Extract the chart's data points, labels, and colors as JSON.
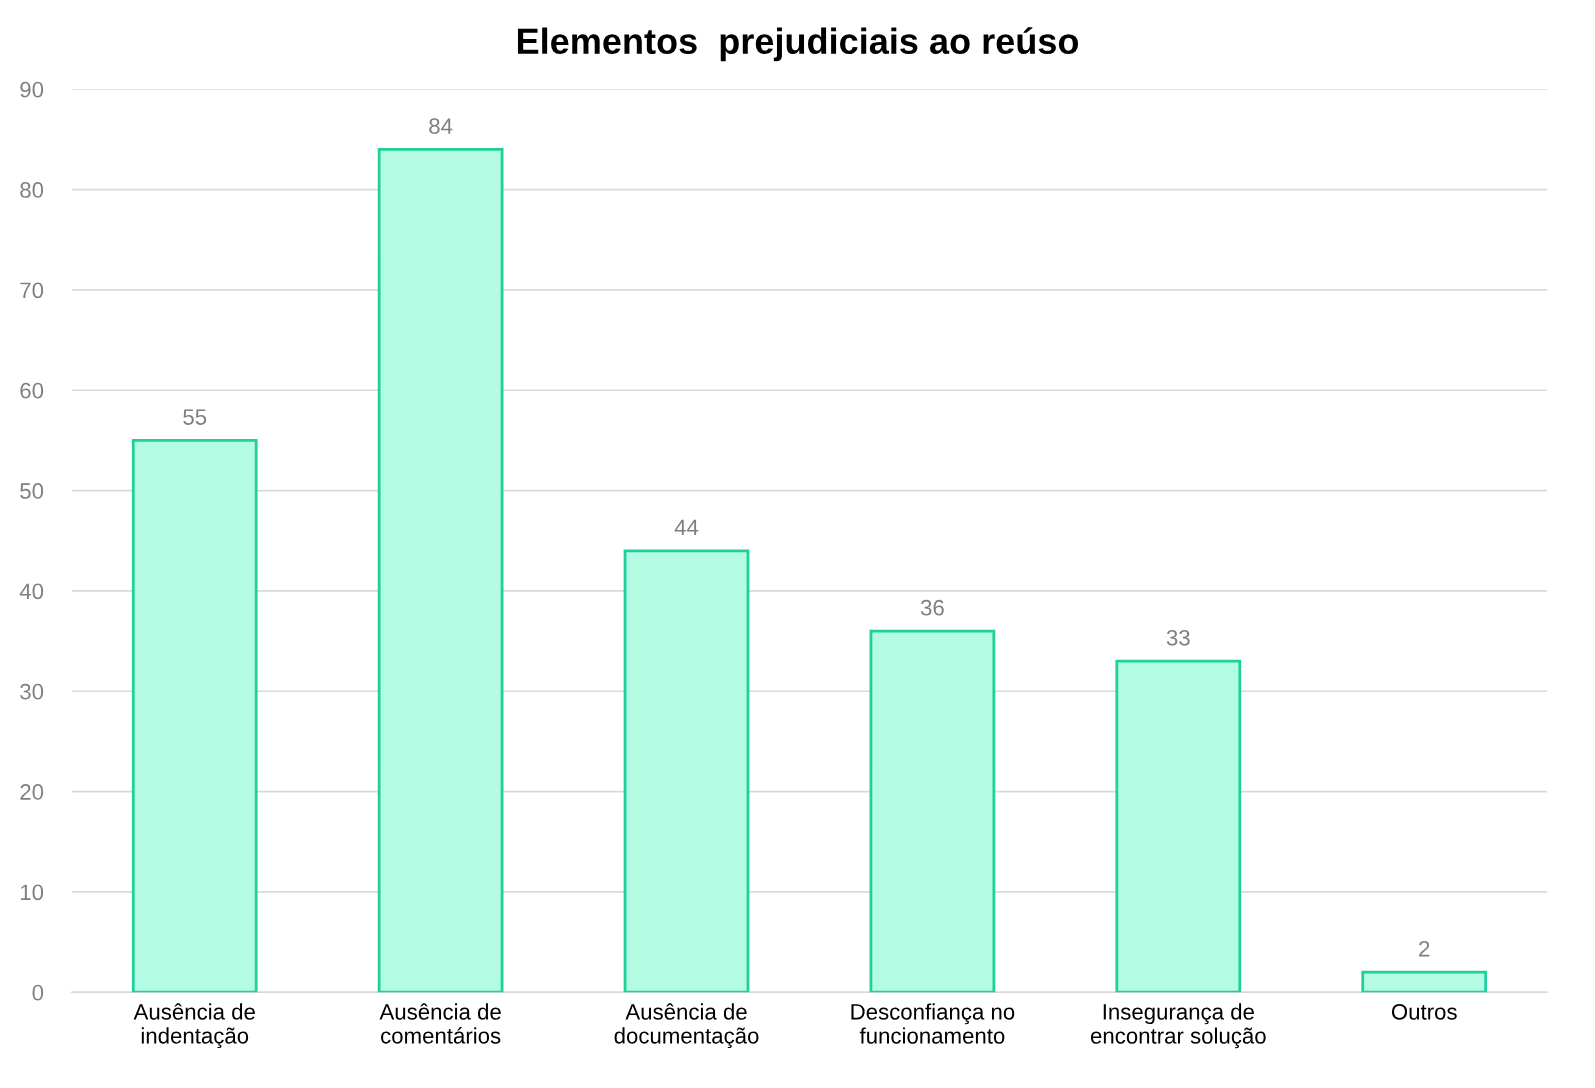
{
  "chart_data": {
    "type": "bar",
    "title": "Elementos  prejudiciais ao reúso",
    "categories": [
      "Ausência de\nindentação",
      "Ausência de\ncomentários",
      "Ausência de\ndocumentação",
      "Desconfiança no\nfuncionamento",
      "Insegurança de\nencontrar solução",
      "Outros"
    ],
    "values": [
      55,
      84,
      44,
      36,
      33,
      2
    ],
    "color": "#b3fbe3",
    "ylim": [
      0,
      90
    ],
    "yticks": [
      0,
      10,
      20,
      30,
      40,
      50,
      60,
      70,
      80,
      90
    ],
    "grid": "y",
    "data_labels": true,
    "legend": false
  }
}
